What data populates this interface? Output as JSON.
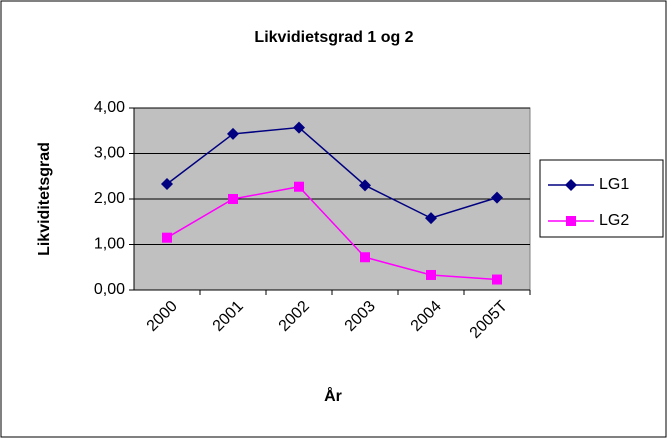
{
  "chart_data": {
    "type": "line",
    "title": "Likvidietsgrad 1 og 2",
    "x_label": "År",
    "y_label": "Likviditetsgrad",
    "categories": [
      "2000",
      "2001",
      "2002",
      "2003",
      "2004",
      "2005T"
    ],
    "series": [
      {
        "name": "LG1",
        "color": "#000080",
        "marker": "diamond",
        "values": [
          2.33,
          3.43,
          3.57,
          2.3,
          1.58,
          2.03
        ]
      },
      {
        "name": "LG2",
        "color": "#ff00ff",
        "marker": "square",
        "values": [
          1.15,
          2.0,
          2.27,
          0.72,
          0.33,
          0.23
        ]
      }
    ],
    "ylim": [
      0,
      4
    ],
    "yticks": [
      {
        "value": 0,
        "label": "0,00"
      },
      {
        "value": 1,
        "label": "1,00"
      },
      {
        "value": 2,
        "label": "2,00"
      },
      {
        "value": 3,
        "label": "3,00"
      },
      {
        "value": 4,
        "label": "4,00"
      }
    ],
    "grid": true,
    "legend": "right",
    "plot_background": "#c0c0c0"
  }
}
